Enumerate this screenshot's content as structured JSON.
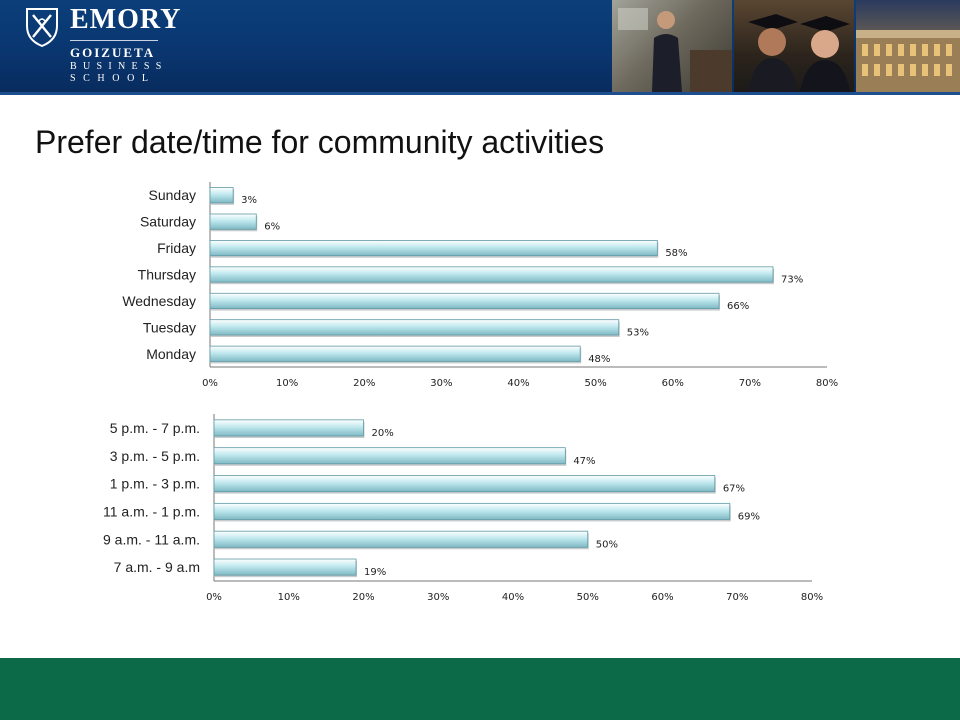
{
  "header": {
    "logo_name": "EMORY",
    "school_line1": "GOIZUETA",
    "school_line2": "BUSINESS",
    "school_line3": "SCHOOL",
    "background_color": "#0a3670"
  },
  "footer": {
    "color": "#0d6a48"
  },
  "page_title": "Prefer date/time for community activities",
  "chart_data": [
    {
      "type": "bar",
      "orientation": "horizontal",
      "categories": [
        "Sunday",
        "Saturday",
        "Friday",
        "Thursday",
        "Wednesday",
        "Tuesday",
        "Monday"
      ],
      "values": [
        3,
        6,
        58,
        73,
        66,
        53,
        48
      ],
      "value_labels": [
        "3%",
        "6%",
        "58%",
        "73%",
        "66%",
        "53%",
        "48%"
      ],
      "xlim": [
        0,
        80
      ],
      "ticks": [
        "0%",
        "10%",
        "20%",
        "30%",
        "40%",
        "50%",
        "60%",
        "70%",
        "80%"
      ],
      "bar_color": "#bfe8ee",
      "grid": false,
      "legend": "none"
    },
    {
      "type": "bar",
      "orientation": "horizontal",
      "categories": [
        "5 p.m. - 7 p.m.",
        "3 p.m. - 5 p.m.",
        "1 p.m. - 3 p.m.",
        "11 a.m. - 1 p.m.",
        "9 a.m. - 11 a.m.",
        "7 a.m. - 9 a.m"
      ],
      "values": [
        20,
        47,
        67,
        69,
        50,
        19
      ],
      "value_labels": [
        "20%",
        "47%",
        "67%",
        "69%",
        "50%",
        "19%"
      ],
      "xlim": [
        0,
        80
      ],
      "ticks": [
        "0%",
        "10%",
        "20%",
        "30%",
        "40%",
        "50%",
        "60%",
        "70%",
        "80%"
      ],
      "bar_color": "#bfe8ee",
      "grid": false,
      "legend": "none"
    }
  ]
}
